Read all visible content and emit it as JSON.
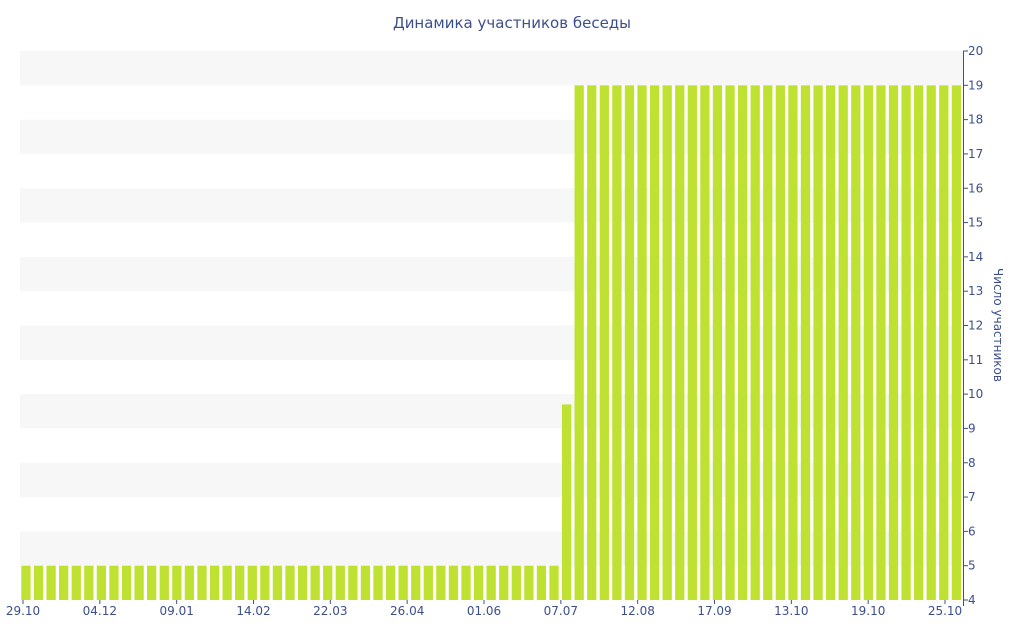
{
  "chart_data": {
    "type": "bar",
    "title": "Динамика участников беседы",
    "xlabel": "",
    "ylabel": "Число участников",
    "y_axis_side": "right",
    "ylim": [
      4,
      20
    ],
    "yticks": [
      4,
      5,
      6,
      7,
      8,
      9,
      10,
      11,
      12,
      13,
      14,
      15,
      16,
      17,
      18,
      19,
      20
    ],
    "x_tick_labels": [
      "29.10",
      "04.12",
      "09.01",
      "14.02",
      "22.03",
      "26.04",
      "01.06",
      "07.07",
      "12.08",
      "17.09",
      "13.10",
      "19.10",
      "25.10"
    ],
    "grid": "alternating horizontal bands",
    "series": [
      {
        "values": [
          5,
          5,
          5,
          5,
          5,
          5,
          5,
          5,
          5,
          5,
          5,
          5,
          5,
          5,
          5,
          5,
          5,
          5,
          5,
          5,
          5,
          5,
          5,
          5,
          5,
          5,
          5,
          5,
          5,
          5,
          5,
          5,
          5,
          5,
          5,
          5,
          5,
          5,
          5,
          5,
          5,
          5,
          5,
          9.7,
          19,
          19,
          19,
          19,
          19,
          19,
          19,
          19,
          19,
          19,
          19,
          19,
          19,
          19,
          19,
          19,
          19,
          19,
          19,
          19,
          19,
          19,
          19,
          19,
          19,
          19,
          19,
          19,
          19,
          19,
          19
        ]
      }
    ]
  },
  "colors": {
    "bar": "#bfe232",
    "band": "#f7f7f7",
    "text": "#3c4f8c",
    "axis": "#3c4f8c"
  }
}
